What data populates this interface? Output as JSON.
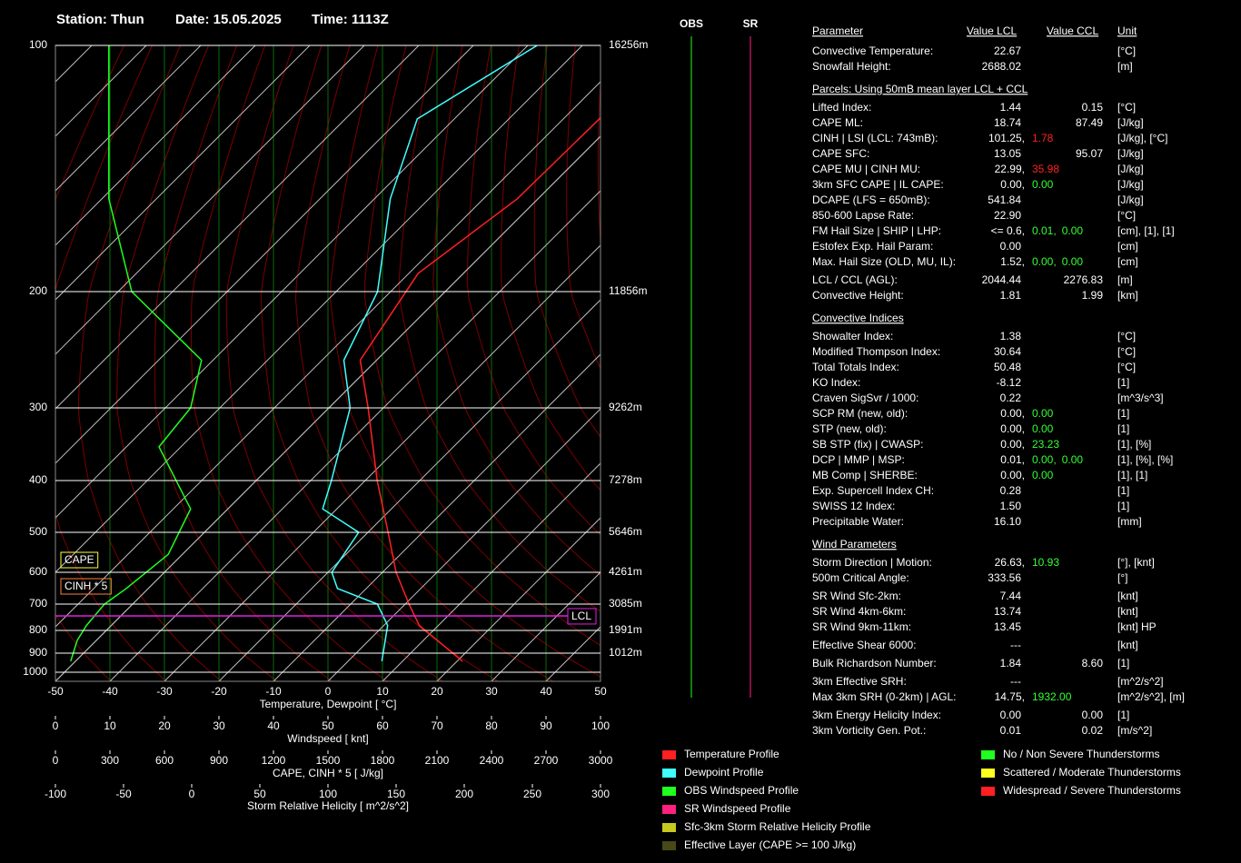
{
  "header": {
    "station": "Station: Thun",
    "date": "Date: 15.05.2025",
    "time": "Time: 1113Z"
  },
  "chart_data": {
    "type": "skewt",
    "yticks": [
      100,
      200,
      300,
      400,
      500,
      600,
      700,
      800,
      900,
      1000
    ],
    "height_labels": [
      "16256m",
      "11856m",
      "9262m",
      "7278m",
      "5646m",
      "4261m",
      "3085m",
      "1991m",
      "1012m",
      null
    ],
    "axes": [
      {
        "label": "Temperature, Dewpoint [ °C]",
        "lim": [
          -50,
          50
        ],
        "ticks": [
          -50,
          -40,
          -30,
          -20,
          -10,
          0,
          10,
          20,
          30,
          40,
          50
        ]
      },
      {
        "label": "Windspeed [ knt]",
        "lim": [
          0,
          100
        ],
        "ticks": [
          0,
          10,
          20,
          30,
          40,
          50,
          60,
          70,
          80,
          90,
          100
        ]
      },
      {
        "label": "CAPE, CINH * 5 [ J/kg]",
        "lim": [
          0,
          3000
        ],
        "ticks": [
          0,
          300,
          600,
          900,
          1200,
          1500,
          1800,
          2100,
          2400,
          2700,
          3000
        ]
      },
      {
        "label": "Storm Relative Helicity [ m^2/s^2]",
        "lim": [
          -100,
          300
        ],
        "ticks": [
          -100,
          -50,
          0,
          50,
          100,
          150,
          200,
          250,
          300
        ]
      }
    ],
    "series": [
      {
        "color": "#ff2020",
        "axis": 0,
        "pressure": [
          941,
          780,
          700,
          600,
          500,
          400,
          300,
          254,
          190,
          154,
          117
        ],
        "values": [
          21,
          6.5,
          0.7,
          -7.5,
          -16.3,
          -27.8,
          -42.8,
          -53,
          -58.3,
          -53.8,
          -53.3
        ]
      },
      {
        "color": "#40ffff",
        "axis": 0,
        "pressure": [
          941,
          780,
          700,
          649,
          600,
          500,
          452,
          400,
          300,
          254,
          200,
          154,
          123,
          100
        ],
        "values": [
          6.2,
          0.7,
          -5.1,
          -15.3,
          -19.3,
          -21.7,
          -32.6,
          -36.2,
          -46.1,
          -56,
          -62.4,
          -77.1,
          -86.8,
          -78.3
        ]
      },
      {
        "color": "#20ff20",
        "axis": 1,
        "pressure": [
          941,
          842,
          780,
          700,
          649,
          553,
          452,
          350,
          300,
          254,
          200,
          154,
          100
        ],
        "values": [
          2.8,
          4,
          5.7,
          9,
          13,
          20.7,
          24.8,
          19,
          24.8,
          26.8,
          14,
          9.8,
          9.8
        ]
      }
    ],
    "lcl": {
      "label": "LCL",
      "pressure": 743
    },
    "boxes": [
      {
        "label": "CAPE",
        "color": "#ffff40"
      },
      {
        "label": "CINH * 5",
        "color": "#ff8040"
      }
    ],
    "columns": [
      {
        "label": "OBS",
        "color": "#20ff20"
      },
      {
        "label": "SR",
        "color": "#ff2080"
      }
    ],
    "legend": [
      {
        "label": "Temperature Profile",
        "color": "#ff2020"
      },
      {
        "label": "Dewpoint Profile",
        "color": "#40ffff"
      },
      {
        "label": "OBS Windspeed Profile",
        "color": "#20ff20"
      },
      {
        "label": "SR Windspeed Profile",
        "color": "#ff2080"
      },
      {
        "label": "Sfc-3km Storm Relative Helicity Profile",
        "color": "#c8c820"
      },
      {
        "label": "Effective Layer (CAPE >= 100 J/kg)",
        "color": "#484818"
      },
      {
        "label": "No / Non Severe Thunderstorms",
        "color": "#20ff20"
      },
      {
        "label": "Scattered / Moderate Thunderstorms",
        "color": "#ffff20"
      },
      {
        "label": "Widespread / Severe Thunderstorms",
        "color": "#ff2020"
      }
    ]
  },
  "table": {
    "header": [
      "Parameter",
      "Value LCL",
      "Value CCL",
      "Unit"
    ],
    "rows": [
      {
        "name": "Convective Temperature:",
        "lcl": [
          {
            "text": "22.67",
            "color": "#ffff40"
          }
        ],
        "unit": "[°C]"
      },
      {
        "name": "Snowfall Height:",
        "lcl": [
          {
            "text": "2688.02",
            "color": "#ffffff"
          }
        ],
        "unit": "[m]"
      },
      {
        "section": "Parcels: Using 50mB mean layer LCL + CCL"
      },
      {
        "name": "Lifted Index:",
        "lcl": [
          {
            "text": "1.44",
            "color": "#ffff40"
          }
        ],
        "ccl": [
          {
            "text": "0.15",
            "color": "#ffff40"
          }
        ],
        "unit": "[°C]"
      },
      {
        "name": "CAPE ML:",
        "lcl": [
          {
            "text": "18.74",
            "color": "#33ff33"
          }
        ],
        "ccl": [
          {
            "text": "87.49",
            "color": "#33ff33"
          }
        ],
        "unit": "[J/kg]"
      },
      {
        "name": "CINH | LSI (LCL: 743mB):",
        "lcl": [
          {
            "text": "101.25,",
            "color": "#ffff40"
          },
          {
            "text": "1.78",
            "color": "#ff2020"
          }
        ],
        "unit": "[J/kg], [°C]"
      },
      {
        "name": "CAPE SFC:",
        "lcl": [
          {
            "text": "13.05",
            "color": "#33ff33"
          }
        ],
        "ccl": [
          {
            "text": "95.07",
            "color": "#33ff33"
          }
        ],
        "unit": "[J/kg]"
      },
      {
        "name": "CAPE MU | CINH MU:",
        "lcl": [
          {
            "text": "22.99,",
            "color": "#33ff33"
          },
          {
            "text": "35.98",
            "color": "#ff2020"
          }
        ],
        "unit": "[J/kg]"
      },
      {
        "name": "3km SFC CAPE | IL CAPE:",
        "lcl": [
          {
            "text": "0.00,",
            "color": "#33ff33"
          },
          {
            "text": "0.00",
            "color": "#33ff33"
          }
        ],
        "unit": "[J/kg]"
      },
      {
        "name": "DCAPE (LFS = 650mB):",
        "lcl": [
          {
            "text": "541.84",
            "color": "#ff2020"
          }
        ],
        "unit": "[J/kg]"
      },
      {
        "name": "850-600 Lapse Rate:",
        "lcl": [
          {
            "text": "22.90",
            "color": "#ff2020"
          }
        ],
        "unit": "[°C]"
      },
      {
        "name": "FM Hail Size | SHIP | LHP:",
        "lcl": [
          {
            "text": "<= 0.6,",
            "color": "#ffff40"
          },
          {
            "text": "0.01,",
            "color": "#33ff33"
          },
          {
            "text": "0.00",
            "color": "#33ff33"
          }
        ],
        "unit": "[cm], [1], [1]"
      },
      {
        "name": "Estofex Exp. Hail Param:",
        "lcl": [
          {
            "text": "0.00",
            "color": "#33ff33"
          }
        ],
        "unit": "[cm]"
      },
      {
        "name": "Max. Hail Size (OLD, MU, IL):",
        "lcl": [
          {
            "text": "1.52,",
            "color": "#ffff40"
          },
          {
            "text": "0.00,",
            "color": "#33ff33"
          },
          {
            "text": "0.00",
            "color": "#33ff33"
          }
        ],
        "unit": "[cm]"
      },
      {
        "name": "LCL / CCL (AGL):",
        "lcl": [
          {
            "text": "2044.44",
            "color": "#33ff33"
          }
        ],
        "ccl": [
          {
            "text": "2276.83",
            "color": "#33ff33"
          }
        ],
        "unit": "[m]"
      },
      {
        "name": "Convective Height:",
        "lcl": [
          {
            "text": "1.81",
            "color": "#33ff33"
          }
        ],
        "ccl": [
          {
            "text": "1.99",
            "color": "#33ff33"
          }
        ],
        "unit": "[km]"
      },
      {
        "section": "Convective Indices"
      },
      {
        "name": "Showalter Index:",
        "lcl": [
          {
            "text": "1.38",
            "color": "#ffff40"
          }
        ],
        "unit": "[°C]"
      },
      {
        "name": "Modified Thompson Index:",
        "lcl": [
          {
            "text": "30.64",
            "color": "#ffff40"
          }
        ],
        "unit": "[°C]"
      },
      {
        "name": "Total Totals Index:",
        "lcl": [
          {
            "text": "50.48",
            "color": "#ff2020"
          }
        ],
        "unit": "[°C]"
      },
      {
        "name": "KO Index:",
        "lcl": [
          {
            "text": "-8.12",
            "color": "#ffff40"
          }
        ],
        "unit": "[1]"
      },
      {
        "name": "Craven SigSvr / 1000:",
        "lcl": [
          {
            "text": "0.22",
            "color": "#33ff33"
          }
        ],
        "unit": "[m^3/s^3]"
      },
      {
        "name": "SCP RM (new, old):",
        "lcl": [
          {
            "text": "0.00,",
            "color": "#33ff33"
          },
          {
            "text": "0.00",
            "color": "#33ff33"
          }
        ],
        "unit": "[1]"
      },
      {
        "name": "STP (new, old):",
        "lcl": [
          {
            "text": "0.00,",
            "color": "#33ff33"
          },
          {
            "text": "0.00",
            "color": "#33ff33"
          }
        ],
        "unit": "[1]"
      },
      {
        "name": "SB STP (fix) | CWASP:",
        "lcl": [
          {
            "text": "0.00,",
            "color": "#33ff33"
          },
          {
            "text": "23.23",
            "color": "#33ff33"
          }
        ],
        "unit": "[1], [%]"
      },
      {
        "name": "DCP | MMP | MSP:",
        "lcl": [
          {
            "text": "0.01,",
            "color": "#33ff33"
          },
          {
            "text": "0.00,",
            "color": "#33ff33"
          },
          {
            "text": "0.00",
            "color": "#33ff33"
          }
        ],
        "unit": "[1], [%], [%]"
      },
      {
        "name": "MB Comp | SHERBE:",
        "lcl": [
          {
            "text": "0.00,",
            "color": "#33ff33"
          },
          {
            "text": "0.00",
            "color": "#33ff33"
          }
        ],
        "unit": "[1], [1]"
      },
      {
        "name": "Exp. Supercell Index CH:",
        "lcl": [
          {
            "text": "0.28",
            "color": "#33ff33"
          }
        ],
        "unit": "[1]"
      },
      {
        "name": "SWISS 12 Index:",
        "lcl": [
          {
            "text": "1.50",
            "color": "#33ff33"
          }
        ],
        "unit": "[1]"
      },
      {
        "name": "Precipitable Water:",
        "lcl": [
          {
            "text": "16.10",
            "color": "#33ff33"
          }
        ],
        "unit": "[mm]"
      },
      {
        "section": "Wind Parameters"
      },
      {
        "name": "Storm Direction | Motion:",
        "lcl": [
          {
            "text": "26.63,",
            "color": "#ffffff"
          },
          {
            "text": "10.93",
            "color": "#33ff33"
          }
        ],
        "unit": "[°], [knt]"
      },
      {
        "name": "500m Critical Angle:",
        "lcl": [
          {
            "text": "333.56",
            "color": "#33ff33"
          }
        ],
        "unit": "[°]"
      },
      {
        "name": "SR Wind Sfc-2km:",
        "lcl": [
          {
            "text": "7.44",
            "color": "#33ff33"
          }
        ],
        "unit": "[knt]"
      },
      {
        "name": "SR Wind 4km-6km:",
        "lcl": [
          {
            "text": "13.74",
            "color": "#33ff33"
          }
        ],
        "unit": "[knt]"
      },
      {
        "name": "SR Wind 9km-11km:",
        "lcl": [
          {
            "text": "13.45",
            "color": "#33ff33"
          }
        ],
        "unit": "[knt] HP"
      },
      {
        "name": "Effective Shear 6000:",
        "lcl": [
          {
            "text": "---",
            "color": "#ffffff"
          }
        ],
        "unit": "[knt]"
      },
      {
        "name": "Bulk Richardson Number:",
        "lcl": [
          {
            "text": "1.84",
            "color": "#33ff33"
          }
        ],
        "ccl": [
          {
            "text": "8.60",
            "color": "#33ff33"
          }
        ],
        "unit": "[1]"
      },
      {
        "name": "3km Effective SRH:",
        "lcl": [
          {
            "text": "---",
            "color": "#ffffff"
          }
        ],
        "unit": "[m^2/s^2]"
      },
      {
        "name": "Max 3km SRH (0-2km) | AGL:",
        "lcl": [
          {
            "text": "14.75,",
            "color": "#33ff33"
          },
          {
            "text": "1932.00",
            "color": "#33ff33"
          }
        ],
        "unit": "[m^2/s^2], [m]"
      },
      {
        "name": "3km Energy Helicity Index:",
        "lcl": [
          {
            "text": "0.00",
            "color": "#33ff33"
          }
        ],
        "ccl": [
          {
            "text": "0.00",
            "color": "#33ff33"
          }
        ],
        "unit": "[1]"
      },
      {
        "name": "3km Vorticity Gen. Pot.:",
        "lcl": [
          {
            "text": "0.01",
            "color": "#33ff33"
          }
        ],
        "ccl": [
          {
            "text": "0.02",
            "color": "#33ff33"
          }
        ],
        "unit": "[m/s^2]"
      }
    ]
  }
}
